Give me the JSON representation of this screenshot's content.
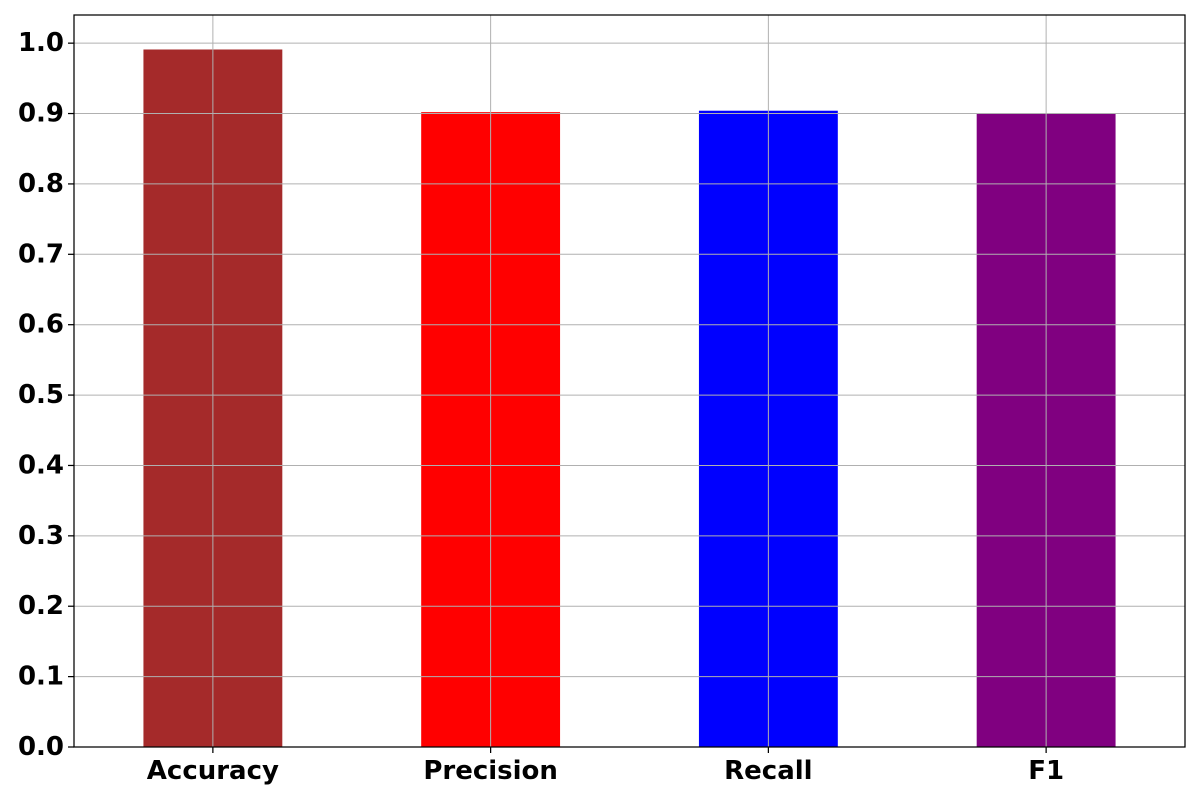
{
  "chart_data": {
    "type": "bar",
    "categories": [
      "Accuracy",
      "Precision",
      "Recall",
      "F1"
    ],
    "values": [
      0.991,
      0.902,
      0.904,
      0.9
    ],
    "colors": [
      "#a52a2a",
      "#ff0000",
      "#0000ff",
      "#800080"
    ],
    "title": "",
    "xlabel": "",
    "ylabel": "",
    "ylim": [
      0,
      1.04
    ],
    "yticks": [
      "0.0",
      "0.1",
      "0.2",
      "0.3",
      "0.4",
      "0.5",
      "0.6",
      "0.7",
      "0.8",
      "0.9",
      "1.0"
    ],
    "grid": true,
    "legend": "none"
  }
}
